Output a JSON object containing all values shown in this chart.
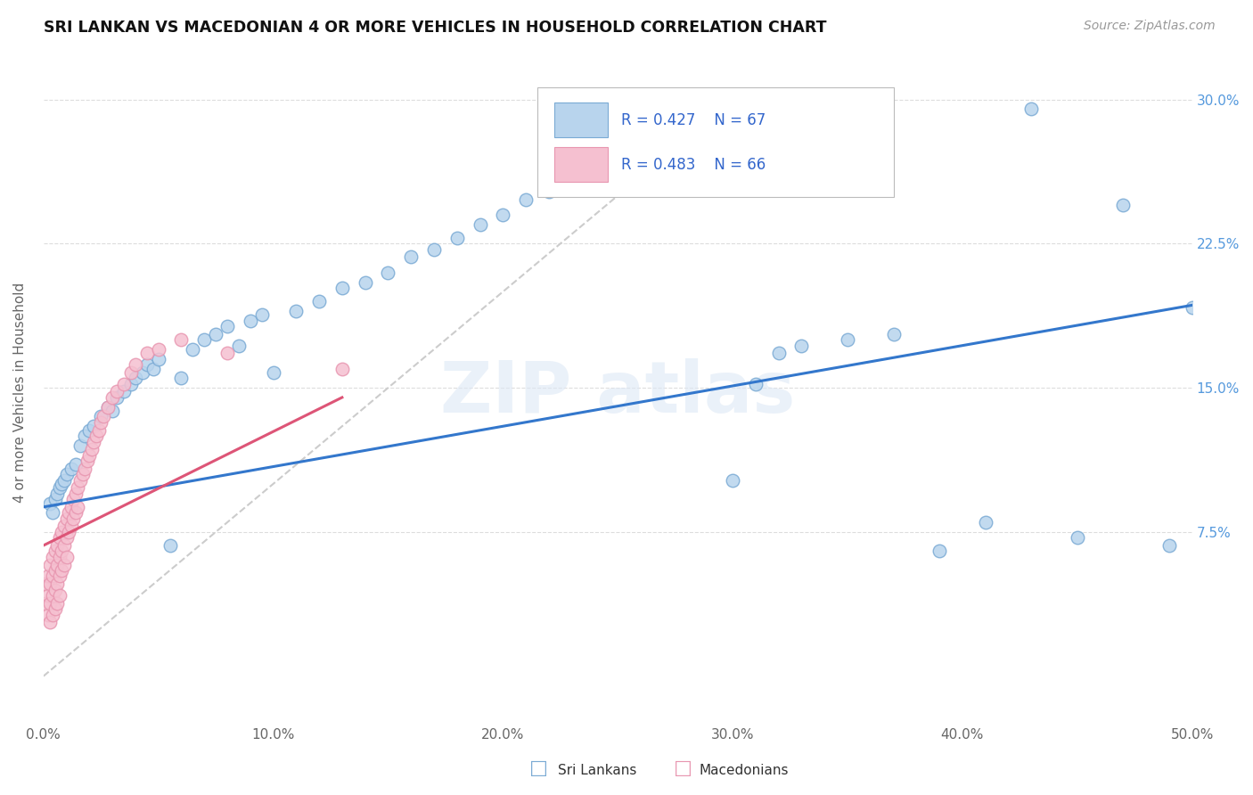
{
  "title": "SRI LANKAN VS MACEDONIAN 4 OR MORE VEHICLES IN HOUSEHOLD CORRELATION CHART",
  "source": "Source: ZipAtlas.com",
  "ylabel": "4 or more Vehicles in Household",
  "xlim": [
    0.0,
    0.5
  ],
  "ylim": [
    -0.025,
    0.32
  ],
  "xticks": [
    0.0,
    0.1,
    0.2,
    0.3,
    0.4,
    0.5
  ],
  "yticks": [
    0.075,
    0.15,
    0.225,
    0.3
  ],
  "ytick_labels": [
    "7.5%",
    "15.0%",
    "22.5%",
    "30.0%"
  ],
  "xtick_labels": [
    "0.0%",
    "10.0%",
    "20.0%",
    "30.0%",
    "40.0%",
    "50.0%"
  ],
  "sri_lankans_color": "#b8d4ed",
  "macedonians_color": "#f5c0d0",
  "sri_lankans_edge": "#7aaad4",
  "macedonians_edge": "#e896b0",
  "trend_sri_color": "#3377cc",
  "trend_mac_color": "#dd5577",
  "diagonal_color": "#cccccc",
  "R_sri": 0.427,
  "N_sri": 67,
  "R_mac": 0.483,
  "N_mac": 66,
  "trend_sri_x0": 0.0,
  "trend_sri_y0": 0.088,
  "trend_sri_x1": 0.5,
  "trend_sri_y1": 0.193,
  "trend_mac_x0": 0.0,
  "trend_mac_y0": 0.068,
  "trend_mac_x1": 0.13,
  "trend_mac_y1": 0.145,
  "sri_x": [
    0.003,
    0.004,
    0.005,
    0.006,
    0.007,
    0.008,
    0.009,
    0.01,
    0.011,
    0.012,
    0.013,
    0.014,
    0.015,
    0.017,
    0.018,
    0.02,
    0.022,
    0.025,
    0.028,
    0.03,
    0.032,
    0.035,
    0.038,
    0.04,
    0.042,
    0.045,
    0.048,
    0.05,
    0.055,
    0.06,
    0.065,
    0.07,
    0.075,
    0.08,
    0.085,
    0.09,
    0.095,
    0.1,
    0.11,
    0.115,
    0.12,
    0.13,
    0.14,
    0.15,
    0.155,
    0.16,
    0.17,
    0.18,
    0.19,
    0.2,
    0.21,
    0.22,
    0.23,
    0.24,
    0.25,
    0.26,
    0.27,
    0.28,
    0.3,
    0.31,
    0.33,
    0.35,
    0.37,
    0.39,
    0.42,
    0.45,
    0.48
  ],
  "sri_y": [
    0.09,
    0.085,
    0.092,
    0.088,
    0.095,
    0.1,
    0.098,
    0.102,
    0.105,
    0.108,
    0.11,
    0.115,
    0.118,
    0.12,
    0.125,
    0.13,
    0.128,
    0.135,
    0.14,
    0.138,
    0.145,
    0.148,
    0.15,
    0.155,
    0.158,
    0.155,
    0.16,
    0.162,
    0.165,
    0.068,
    0.17,
    0.175,
    0.178,
    0.18,
    0.172,
    0.182,
    0.185,
    0.155,
    0.188,
    0.19,
    0.195,
    0.2,
    0.205,
    0.21,
    0.218,
    0.225,
    0.22,
    0.228,
    0.232,
    0.238,
    0.248,
    0.295,
    0.26,
    0.248,
    0.255,
    0.26,
    0.265,
    0.27,
    0.1,
    0.15,
    0.165,
    0.168,
    0.172,
    0.175,
    0.065,
    0.078,
    0.068
  ],
  "mac_x": [
    0.001,
    0.001,
    0.002,
    0.002,
    0.002,
    0.003,
    0.003,
    0.003,
    0.003,
    0.004,
    0.004,
    0.004,
    0.004,
    0.005,
    0.005,
    0.005,
    0.005,
    0.006,
    0.006,
    0.006,
    0.006,
    0.007,
    0.007,
    0.007,
    0.007,
    0.008,
    0.008,
    0.008,
    0.009,
    0.009,
    0.009,
    0.01,
    0.01,
    0.01,
    0.011,
    0.011,
    0.012,
    0.012,
    0.013,
    0.013,
    0.014,
    0.014,
    0.015,
    0.015,
    0.016,
    0.017,
    0.018,
    0.019,
    0.02,
    0.021,
    0.022,
    0.023,
    0.024,
    0.025,
    0.026,
    0.028,
    0.03,
    0.032,
    0.035,
    0.038,
    0.04,
    0.045,
    0.05,
    0.06,
    0.08,
    0.13
  ],
  "mac_y": [
    0.05,
    0.04,
    0.055,
    0.045,
    0.035,
    0.058,
    0.048,
    0.038,
    0.028,
    0.062,
    0.052,
    0.042,
    0.032,
    0.065,
    0.055,
    0.045,
    0.035,
    0.068,
    0.058,
    0.048,
    0.038,
    0.072,
    0.062,
    0.052,
    0.042,
    0.075,
    0.065,
    0.055,
    0.078,
    0.068,
    0.058,
    0.082,
    0.072,
    0.062,
    0.085,
    0.075,
    0.088,
    0.078,
    0.092,
    0.082,
    0.095,
    0.085,
    0.098,
    0.088,
    0.102,
    0.105,
    0.108,
    0.112,
    0.115,
    0.118,
    0.122,
    0.125,
    0.128,
    0.132,
    0.135,
    0.14,
    0.145,
    0.148,
    0.152,
    0.158,
    0.162,
    0.168,
    0.17,
    0.175,
    0.168,
    0.16
  ]
}
